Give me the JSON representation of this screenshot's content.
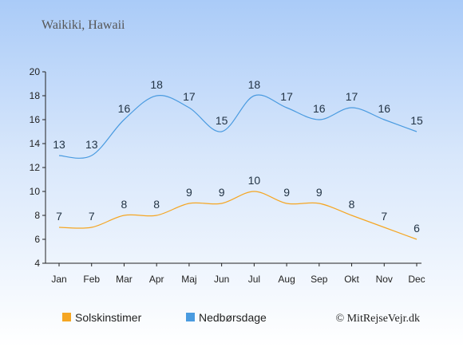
{
  "chart_data": {
    "type": "line",
    "title": "Waikiki, Hawaii",
    "categories": [
      "Jan",
      "Feb",
      "Mar",
      "Apr",
      "Maj",
      "Jun",
      "Jul",
      "Aug",
      "Sep",
      "Okt",
      "Nov",
      "Dec"
    ],
    "series": [
      {
        "name": "Solskinstimer",
        "color": "#f5a623",
        "values": [
          7,
          7,
          8,
          8,
          9,
          9,
          10,
          9,
          9,
          8,
          7,
          6
        ]
      },
      {
        "name": "Nedbørsdage",
        "color": "#4a9be0",
        "values": [
          13,
          13,
          16,
          18,
          17,
          15,
          18,
          17,
          16,
          17,
          16,
          15
        ]
      }
    ],
    "yticks": [
      4,
      6,
      8,
      10,
      12,
      14,
      16,
      18,
      20
    ],
    "ylim": [
      4,
      20
    ],
    "legend_position": "bottom-left",
    "credit": "© MitRejseVejr.dk"
  }
}
